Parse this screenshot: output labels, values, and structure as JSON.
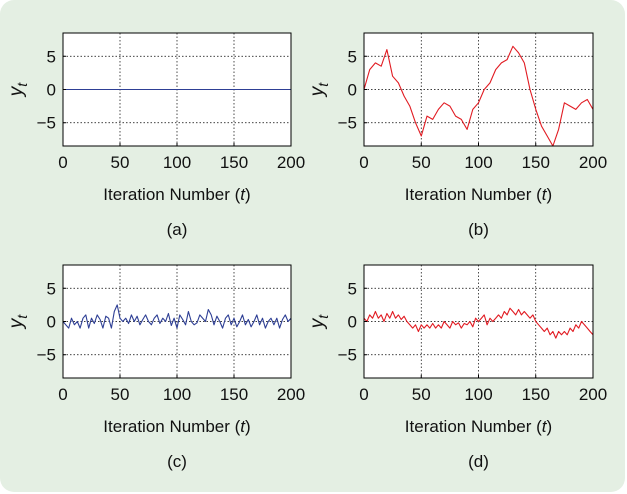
{
  "colors": {
    "background": "#e4efe3",
    "blue": "#2e3f95",
    "red": "#e11b22",
    "grid": "#000000"
  },
  "chart_data": [
    {
      "type": "line",
      "panel_label": "(a)",
      "xlabel_prefix": "Iteration Number (",
      "xlabel_var": "t",
      "xlabel_suffix": ")",
      "ylabel_main": "y",
      "ylabel_sub": "t",
      "xlim": [
        0,
        200
      ],
      "ylim": [
        -8.5,
        8.5
      ],
      "xticks": [
        0,
        50,
        100,
        150,
        200
      ],
      "yticks": [
        5,
        0,
        -5
      ],
      "ytick_labels": [
        "5",
        "0",
        "−5"
      ],
      "grid": true,
      "color": "#2e3f95",
      "series": [
        {
          "x_start": 0,
          "x_step": 1,
          "values": []
        }
      ]
    },
    {
      "type": "line",
      "panel_label": "(b)",
      "xlabel_prefix": "Iteration Number (",
      "xlabel_var": "t",
      "xlabel_suffix": ")",
      "ylabel_main": "y",
      "ylabel_sub": "t",
      "xlim": [
        0,
        200
      ],
      "ylim": [
        -8.5,
        8.5
      ],
      "xticks": [
        0,
        50,
        100,
        150,
        200
      ],
      "yticks": [
        5,
        0,
        -5
      ],
      "ytick_labels": [
        "5",
        "0",
        "−5"
      ],
      "grid": true,
      "color": "#e11b22",
      "series": [
        {
          "x_start": 0,
          "x_step": 5,
          "values": [
            0,
            3,
            4,
            3.5,
            6,
            2,
            1,
            -1,
            -2.5,
            -5,
            -7,
            -4,
            -4.5,
            -3,
            -2,
            -2.5,
            -4,
            -4.5,
            -6,
            -3,
            -2,
            0,
            1,
            3,
            4,
            4.5,
            6.5,
            5.5,
            4,
            0,
            -3,
            -5.5,
            -7,
            -8.5,
            -6,
            -2,
            -2.5,
            -3,
            -2,
            -1.5,
            -3
          ]
        }
      ]
    },
    {
      "type": "line",
      "panel_label": "(c)",
      "xlabel_prefix": "Iteration Number (",
      "xlabel_var": "t",
      "xlabel_suffix": ")",
      "ylabel_main": "y",
      "ylabel_sub": "t",
      "xlim": [
        0,
        200
      ],
      "ylim": [
        -8.5,
        8.5
      ],
      "xticks": [
        0,
        50,
        100,
        150,
        200
      ],
      "yticks": [
        5,
        0,
        -5
      ],
      "ytick_labels": [
        "5",
        "0",
        "−5"
      ],
      "grid": true,
      "color": "#2e3f95",
      "series": [
        {
          "x_start": 0,
          "x_step": 2.5,
          "values": [
            0,
            -0.5,
            -1,
            0.5,
            -0.5,
            0,
            -1,
            0.5,
            1,
            -1,
            0.5,
            -0.3,
            1,
            0.3,
            -1,
            0.8,
            0.5,
            -1,
            1.5,
            2.5,
            0.5,
            0,
            0.5,
            -0.3,
            1,
            0,
            0.8,
            -0.5,
            0.3,
            1,
            0,
            -0.5,
            0.5,
            1,
            -0.3,
            0.5,
            0,
            1.2,
            -0.6,
            0.5,
            -1,
            1,
            0.3,
            -0.5,
            1.5,
            0,
            -0.5,
            -0.2,
            1,
            0.5,
            0,
            1.8,
            1,
            -0.5,
            0.8,
            0,
            -1,
            0.5,
            1,
            -0.5,
            0.5,
            -0.8,
            0,
            1,
            -0.5,
            0.3,
            -0.8,
            0,
            1,
            -0.5,
            0.5,
            -1,
            0,
            0.5,
            -0.5,
            0.5,
            -1,
            0.3,
            1,
            0,
            0.5
          ]
        }
      ]
    },
    {
      "type": "line",
      "panel_label": "(d)",
      "xlabel_prefix": "Iteration Number (",
      "xlabel_var": "t",
      "xlabel_suffix": ")",
      "ylabel_main": "y",
      "ylabel_sub": "t",
      "xlim": [
        0,
        200
      ],
      "ylim": [
        -8.5,
        8.5
      ],
      "xticks": [
        0,
        50,
        100,
        150,
        200
      ],
      "yticks": [
        5,
        0,
        -5
      ],
      "ytick_labels": [
        "5",
        "0",
        "−5"
      ],
      "grid": true,
      "color": "#e11b22",
      "series": [
        {
          "x_start": 0,
          "x_step": 2.5,
          "values": [
            0.5,
            0,
            1,
            0.5,
            1.5,
            0.5,
            1,
            0,
            1.2,
            0.5,
            1.5,
            0.5,
            1,
            0.3,
            0.8,
            0,
            -0.5,
            -1,
            -0.5,
            -1.5,
            -0.5,
            -1,
            -0.5,
            -1,
            -0.3,
            -1,
            -0.5,
            -1,
            0,
            -0.5,
            -1,
            0,
            -0.5,
            -0.2,
            -1,
            -0.3,
            -0.5,
            0,
            -0.8,
            0.5,
            0,
            0.5,
            1,
            -0.5,
            0.5,
            0,
            0.5,
            1,
            0.5,
            1.5,
            1,
            2,
            1.5,
            1,
            1.8,
            1,
            1.5,
            1,
            0.5,
            1,
            0,
            -0.5,
            -1,
            -1.5,
            -1,
            -2,
            -1.5,
            -2.5,
            -1.5,
            -2,
            -1.5,
            -2,
            -1,
            -1.5,
            -0.5,
            -1,
            0,
            -0.5,
            -1,
            -1.5,
            -2
          ]
        }
      ]
    }
  ]
}
